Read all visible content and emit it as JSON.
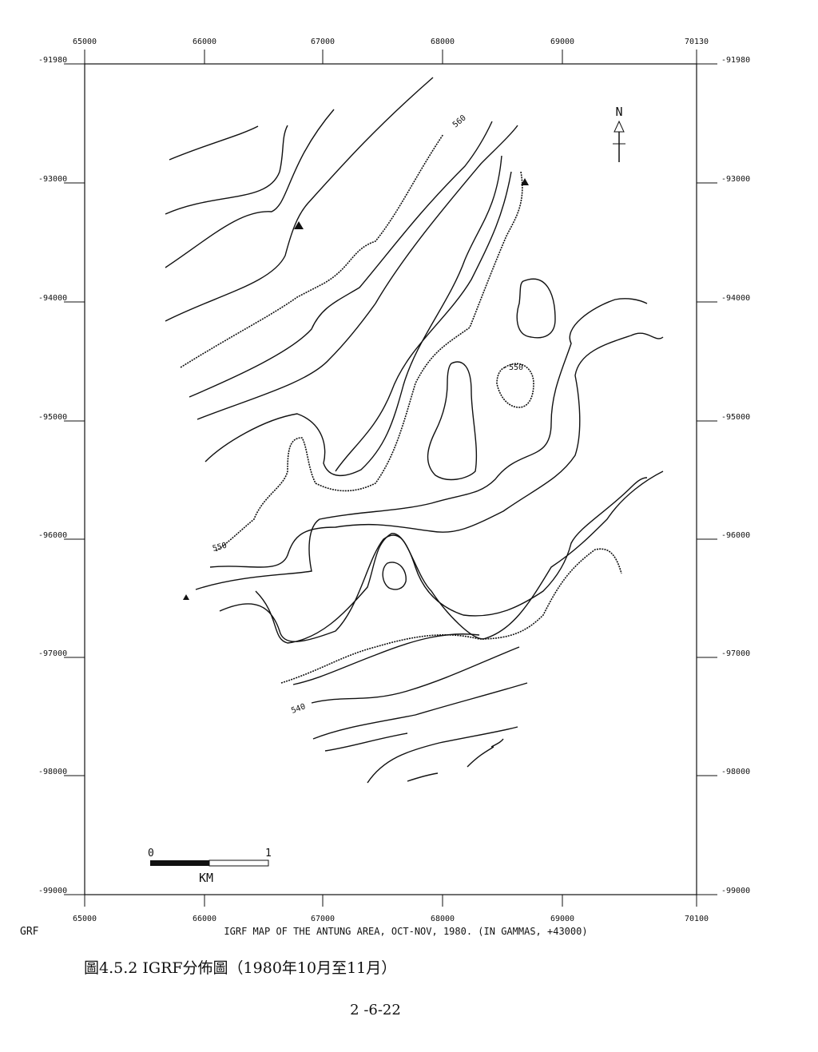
{
  "map": {
    "top_labels": [
      "65000",
      "66000",
      "67000",
      "68000",
      "69000",
      "70130"
    ],
    "bottom_labels": [
      "65000",
      "66000",
      "67000",
      "68000",
      "69000",
      "70100"
    ],
    "left_labels": [
      "-91980",
      "-93000",
      "-94000",
      "-95000",
      "-96000",
      "-97000",
      "-98000",
      "-99000"
    ],
    "right_labels": [
      "-91980",
      "-93000",
      "-94000",
      "-95000",
      "-96000",
      "-97000",
      "-98000",
      "-99000"
    ],
    "contour_labels": [
      "560",
      "550",
      "550",
      "540"
    ],
    "north": "N",
    "scale": {
      "start": "0",
      "end": "1",
      "unit": "KM"
    },
    "corner_label": "GRF",
    "map_title": "IGRF MAP OF THE ANTUNG AREA, OCT-NOV, 1980. (IN GAMMAS, +43000)"
  },
  "caption": "圖4.5.2 IGRF分佈圖（1980年10月至11月）",
  "page_number": "2 -6-22"
}
